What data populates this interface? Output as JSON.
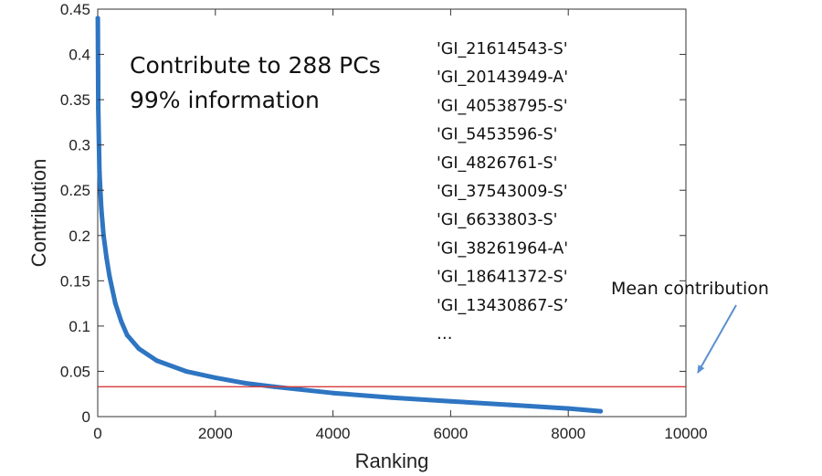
{
  "chart_data": {
    "type": "scatter",
    "title": "",
    "xlabel": "Ranking",
    "ylabel": "Contribution",
    "xlim": [
      0,
      10000
    ],
    "ylim": [
      0,
      0.45
    ],
    "xticks": [
      0,
      2000,
      4000,
      6000,
      8000,
      10000
    ],
    "yticks": [
      0,
      0.05,
      0.1,
      0.15,
      0.2,
      0.25,
      0.3,
      0.35,
      0.4,
      0.45
    ],
    "grid": false,
    "series": [
      {
        "color": "#2e75c2",
        "x": [
          1,
          10,
          30,
          60,
          100,
          150,
          200,
          300,
          400,
          500,
          700,
          1000,
          1500,
          2000,
          2500,
          3000,
          4000,
          5000,
          6000,
          7000,
          8000,
          8550
        ],
        "y": [
          0.44,
          0.34,
          0.27,
          0.23,
          0.2,
          0.175,
          0.155,
          0.125,
          0.105,
          0.09,
          0.075,
          0.062,
          0.05,
          0.043,
          0.037,
          0.033,
          0.026,
          0.021,
          0.017,
          0.013,
          0.009,
          0.006
        ]
      }
    ],
    "reference_line": {
      "y": 0.033,
      "color": "#d83a3a",
      "label": "Mean contribution"
    },
    "annotations": {
      "main_text": [
        "Contribute to 288 PCs",
        "99% information"
      ],
      "gene_list": [
        "'GI_21614543-S'",
        "'GI_20143949-A'",
        "'GI_40538795-S'",
        "'GI_5453596-S'",
        "'GI_4826761-S'",
        "'GI_37543009-S'",
        "'GI_6633803-S'",
        "'GI_38261964-A'",
        "'GI_18641372-S'",
        "'GI_13430867-S’",
        "…"
      ]
    }
  }
}
